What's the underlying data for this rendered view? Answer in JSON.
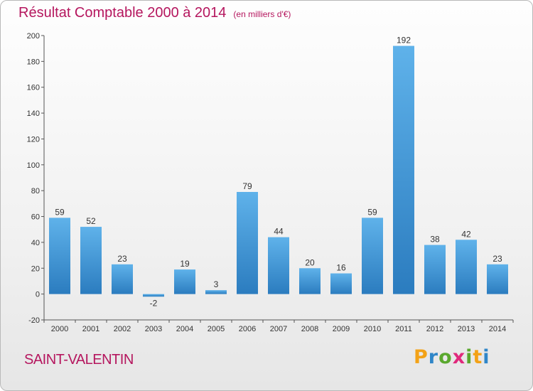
{
  "title": "Résultat Comptable 2000 à 2014",
  "unit": "(en milliers d'€)",
  "commune": "SAINT-VALENTIN",
  "logo": {
    "letters": [
      "P",
      "r",
      "o",
      "x",
      "i",
      "t",
      "i"
    ],
    "colors": [
      "#f3a217",
      "#2f86c8",
      "#5aa82e",
      "#e0297c",
      "#5aa82e",
      "#f3a217",
      "#2f86c8"
    ]
  },
  "colors": {
    "bar_light": "#5fb2ea",
    "bar_dark": "#2b7cbf",
    "title": "#b5165e"
  },
  "chart_data": {
    "type": "bar",
    "categories": [
      "2000",
      "2001",
      "2002",
      "2003",
      "2004",
      "2005",
      "2006",
      "2007",
      "2008",
      "2009",
      "2010",
      "2011",
      "2012",
      "2013",
      "2014"
    ],
    "values": [
      59,
      52,
      23,
      -2,
      19,
      3,
      79,
      44,
      20,
      16,
      59,
      192,
      38,
      42,
      23
    ],
    "ylim": [
      -20,
      200
    ],
    "yticks": [
      -20,
      0,
      20,
      40,
      60,
      80,
      100,
      120,
      140,
      160,
      180,
      200
    ],
    "grid": false,
    "legend": "none"
  }
}
